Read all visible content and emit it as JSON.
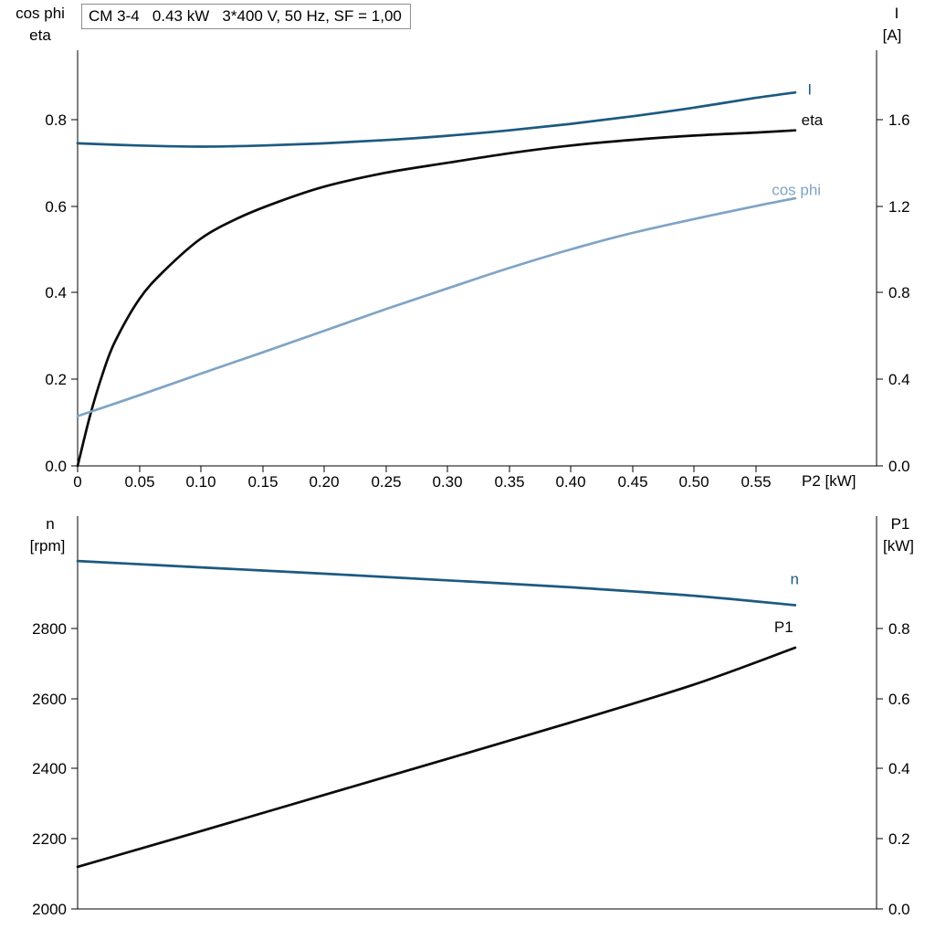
{
  "colors": {
    "background": "#ffffff",
    "axis": "#000000",
    "dark_blue": "#1c5a80",
    "light_blue": "#7fa4c5",
    "black_curve": "#0a0a0a"
  },
  "chart_data": [
    {
      "type": "line",
      "id": "upper-motor-curves",
      "title": "CM 3-4   0.43 kW   3*400 V, 50 Hz, SF = 1,00",
      "x_axis": {
        "label": "P2 [kW]",
        "lim": [
          0,
          0.648
        ],
        "ticks": [
          0,
          0.05,
          0.1,
          0.15,
          0.2,
          0.25,
          0.3,
          0.35,
          0.4,
          0.45,
          0.5,
          0.55
        ],
        "tick_labels": [
          "0",
          "0.05",
          "0.10",
          "0.15",
          "0.20",
          "0.25",
          "0.30",
          "0.35",
          "0.40",
          "0.45",
          "0.50",
          "0.55"
        ]
      },
      "left_axis": {
        "label_lines": [
          "cos phi",
          "eta"
        ],
        "lim": [
          0,
          0.96
        ],
        "ticks": [
          0,
          0.2,
          0.4,
          0.6,
          0.8
        ],
        "tick_labels": [
          "0.0",
          "0.2",
          "0.4",
          "0.6",
          "0.8"
        ]
      },
      "right_axis": {
        "label_lines": [
          "I",
          "[A]"
        ],
        "lim": [
          0,
          1.92
        ],
        "ticks": [
          0,
          0.4,
          0.8,
          1.2,
          1.6
        ],
        "tick_labels": [
          "0.0",
          "0.4",
          "0.8",
          "1.2",
          "1.6"
        ]
      },
      "series": [
        {
          "name": "I",
          "axis": "right",
          "color": "dark_blue",
          "label": "I",
          "label_at": [
            0.592,
            1.74
          ],
          "x": [
            0,
            0.05,
            0.1,
            0.15,
            0.2,
            0.25,
            0.3,
            0.35,
            0.4,
            0.45,
            0.5,
            0.55,
            0.582
          ],
          "y": [
            1.49,
            1.48,
            1.475,
            1.48,
            1.49,
            1.505,
            1.525,
            1.55,
            1.58,
            1.615,
            1.655,
            1.7,
            1.725
          ]
        },
        {
          "name": "eta",
          "axis": "left",
          "color": "black_curve",
          "label": "eta",
          "label_at": [
            0.587,
            0.8
          ],
          "x": [
            0,
            0.01,
            0.02,
            0.03,
            0.05,
            0.07,
            0.1,
            0.13,
            0.16,
            0.2,
            0.25,
            0.3,
            0.35,
            0.4,
            0.45,
            0.5,
            0.55,
            0.582
          ],
          "y": [
            0,
            0.115,
            0.21,
            0.285,
            0.385,
            0.45,
            0.525,
            0.572,
            0.607,
            0.645,
            0.677,
            0.7,
            0.722,
            0.74,
            0.753,
            0.763,
            0.77,
            0.775
          ]
        },
        {
          "name": "cos phi",
          "axis": "left",
          "color": "light_blue",
          "label": "cos phi",
          "label_at": [
            0.563,
            0.638
          ],
          "x": [
            0,
            0.05,
            0.1,
            0.15,
            0.2,
            0.25,
            0.3,
            0.35,
            0.4,
            0.45,
            0.5,
            0.55,
            0.582
          ],
          "y": [
            0.115,
            0.163,
            0.213,
            0.262,
            0.312,
            0.362,
            0.41,
            0.457,
            0.5,
            0.538,
            0.57,
            0.6,
            0.618
          ]
        }
      ]
    },
    {
      "type": "line",
      "id": "lower-motor-curves",
      "title": "",
      "x_axis": {
        "label": "",
        "lim": [
          0,
          0.648
        ],
        "ticks": [],
        "tick_labels": []
      },
      "left_axis": {
        "label_lines": [
          "n",
          "[rpm]"
        ],
        "lim": [
          2000,
          3120
        ],
        "ticks": [
          2000,
          2200,
          2400,
          2600,
          2800
        ],
        "tick_labels": [
          "2000",
          "2200",
          "2400",
          "2600",
          "2800"
        ]
      },
      "right_axis": {
        "label_lines": [
          "P1",
          "[kW]"
        ],
        "lim": [
          0,
          1.12
        ],
        "ticks": [
          0,
          0.2,
          0.4,
          0.6,
          0.8
        ],
        "tick_labels": [
          "0.0",
          "0.2",
          "0.4",
          "0.6",
          "0.8"
        ]
      },
      "series": [
        {
          "name": "n",
          "axis": "left",
          "color": "dark_blue",
          "label": "n",
          "label_at": [
            0.578,
            2942
          ],
          "x": [
            0,
            0.1,
            0.2,
            0.3,
            0.4,
            0.5,
            0.582
          ],
          "y": [
            2992,
            2974,
            2956,
            2937,
            2917,
            2893,
            2866
          ]
        },
        {
          "name": "P1",
          "axis": "right",
          "color": "black_curve",
          "label": "P1",
          "label_at": [
            0.565,
            0.805
          ],
          "x": [
            0,
            0.1,
            0.2,
            0.3,
            0.4,
            0.5,
            0.582
          ],
          "y": [
            0.12,
            0.222,
            0.325,
            0.428,
            0.532,
            0.64,
            0.745
          ]
        }
      ]
    }
  ]
}
